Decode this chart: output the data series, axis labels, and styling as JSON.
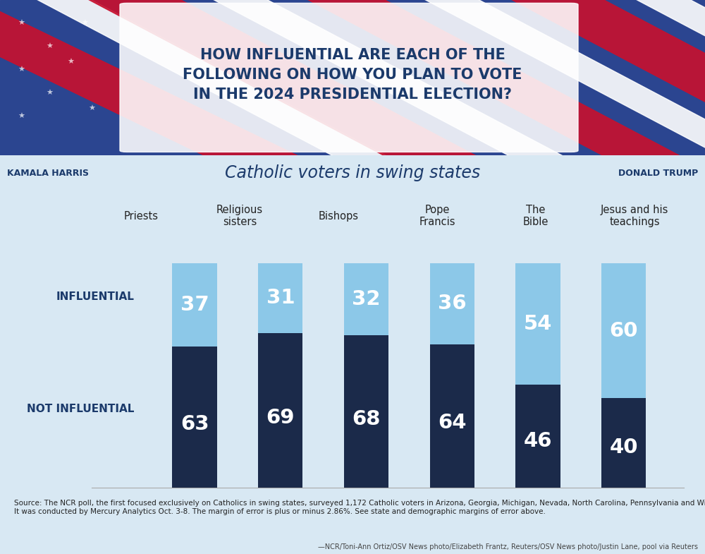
{
  "categories": [
    "Priests",
    "Religious\nsisters",
    "Bishops",
    "Pope\nFrancis",
    "The\nBible",
    "Jesus and his\nteachings"
  ],
  "influential": [
    37,
    31,
    32,
    36,
    54,
    60
  ],
  "not_influential": [
    63,
    69,
    68,
    64,
    46,
    40
  ],
  "color_influential": "#8CC8E8",
  "color_not_influential": "#1B2A4A",
  "background_color": "#D8E8F3",
  "title_text": "HOW INFLUENTIAL ARE EACH OF THE\nFOLLOWING ON HOW YOU PLAN TO VOTE\nIN THE 2024 PRESIDENTIAL ELECTION?",
  "subtitle": "Catholic voters in swing states",
  "label_influential": "INFLUENTIAL",
  "label_not_influential": "NOT INFLUENTIAL",
  "label_harris": "KAMALA HARRIS",
  "label_trump": "DONALD TRUMP",
  "source_text": "Source: The NCR poll, the first focused exclusively on Catholics in swing states, surveyed 1,172 Catholic voters in Arizona, Georgia, Michigan, Nevada, North Carolina, Pennsylvania and Wisconsin.\nIt was conducted by Mercury Analytics Oct. 3-8. The margin of error is plus or minus 2.86%. See state and demographic margins of error above.",
  "credit_text": "—NCR/Toni-Ann Ortiz/OSV News photo/Elizabeth Frantz, Reuters/OSV News photo/Justin Lane, pool via Reuters",
  "dark_blue_text": "#1B3A6B",
  "flag_blue": "#2B4590",
  "flag_red": "#C0392B",
  "banner_bg": "#3A3A5C"
}
